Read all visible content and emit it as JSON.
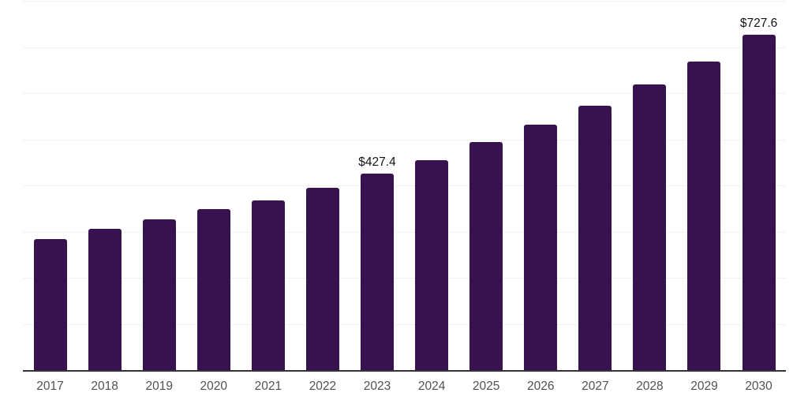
{
  "chart_data": {
    "type": "bar",
    "title": "",
    "xlabel": "",
    "ylabel": "",
    "categories": [
      "2017",
      "2018",
      "2019",
      "2020",
      "2021",
      "2022",
      "2023",
      "2024",
      "2025",
      "2026",
      "2027",
      "2028",
      "2029",
      "2030"
    ],
    "values": [
      286.1,
      308.3,
      328.7,
      350.8,
      369.6,
      396.8,
      427.4,
      456.4,
      495.6,
      533.1,
      573.9,
      619.9,
      669.3,
      727.6
    ],
    "data_labels": {
      "2023": "$427.4",
      "2030": "$727.6"
    },
    "ylim": [
      0,
      800
    ],
    "gridline_step": 100,
    "grid": true,
    "legend": false,
    "y_axis_tick_labels_visible": false,
    "colors": {
      "bar": "#36134E",
      "gridline": "#F2F2F2",
      "axis_line": "#333333",
      "x_tick_label": "#515151",
      "data_label": "#141414",
      "background": "#FFFFFF"
    }
  }
}
